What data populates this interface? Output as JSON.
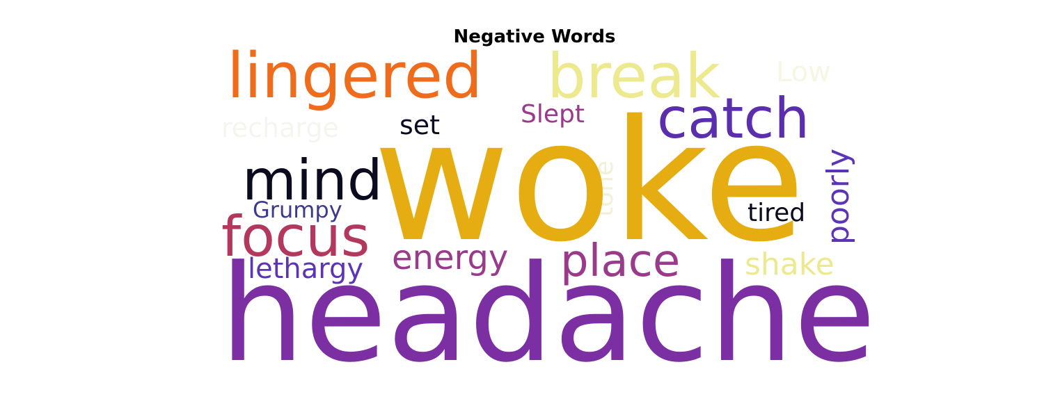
{
  "title": "Negative Words",
  "words": [
    {
      "key": "woke",
      "text": "woke",
      "color": "#e6ad12"
    },
    {
      "key": "headache",
      "text": "headache",
      "color": "#7b2fa2"
    },
    {
      "key": "lingered",
      "text": "lingered",
      "color": "#ef6c1c"
    },
    {
      "key": "break",
      "text": "break",
      "color": "#ece98e"
    },
    {
      "key": "catch",
      "text": "catch",
      "color": "#5b2eae"
    },
    {
      "key": "mind",
      "text": "mind",
      "color": "#0b0b1f"
    },
    {
      "key": "focus",
      "text": "focus",
      "color": "#b3385e"
    },
    {
      "key": "place",
      "text": "place",
      "color": "#9a3a8a"
    },
    {
      "key": "energy",
      "text": "energy",
      "color": "#9a3a8a"
    },
    {
      "key": "lethargy",
      "text": "lethargy",
      "color": "#5b34b8"
    },
    {
      "key": "shake",
      "text": "shake",
      "color": "#ece98e"
    },
    {
      "key": "grumpy",
      "text": "Grumpy",
      "color": "#3c3a8e"
    },
    {
      "key": "slept",
      "text": "Slept",
      "color": "#9a3a8a"
    },
    {
      "key": "set",
      "text": "set",
      "color": "#0b0b1f"
    },
    {
      "key": "recharge",
      "text": "recharge",
      "color": "#f5f5f0"
    },
    {
      "key": "low",
      "text": "Low",
      "color": "#f7f6e4"
    },
    {
      "key": "tone",
      "text": "tone",
      "color": "#f3f0d8"
    },
    {
      "key": "poorly",
      "text": "poorly",
      "color": "#5b34b8"
    },
    {
      "key": "tired",
      "text": "tired",
      "color": "#0b0b1f"
    }
  ]
}
